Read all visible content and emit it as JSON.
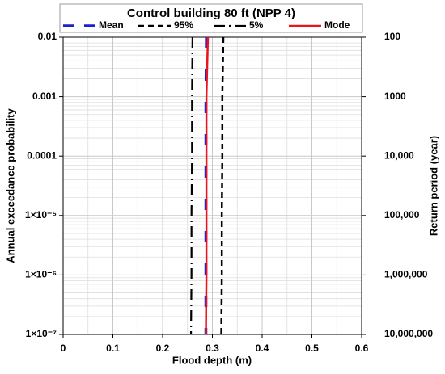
{
  "chart_data": {
    "type": "line",
    "title": "Control building 80 ft (NPP 4)",
    "x_label": "Flood depth (m)",
    "y_label": "Annual exceedance probability",
    "y2_label": "Return period (year)",
    "y": [
      0.01,
      0.001,
      0.0001,
      1e-05,
      1e-06,
      1e-07
    ],
    "series": [
      {
        "name": "Mean",
        "color": "#1f1fd0",
        "dash": "long-dash",
        "values": [
          0.288,
          0.287,
          0.287,
          0.287,
          0.287,
          0.287
        ]
      },
      {
        "name": "95%",
        "color": "#000000",
        "dash": "dash",
        "values": [
          0.322,
          0.32,
          0.32,
          0.319,
          0.319,
          0.318
        ]
      },
      {
        "name": "5%",
        "color": "#000000",
        "dash": "dash-dot",
        "values": [
          0.26,
          0.259,
          0.259,
          0.258,
          0.258,
          0.257
        ]
      },
      {
        "name": "Mode",
        "color": "#e8141e",
        "dash": "solid",
        "values": [
          0.291,
          0.288,
          0.288,
          0.288,
          0.288,
          0.287
        ]
      }
    ],
    "xlim": [
      0,
      0.6
    ],
    "xticks": [
      0,
      0.1,
      0.2,
      0.3,
      0.4,
      0.5,
      0.6
    ],
    "ylim": [
      1e-07,
      0.01
    ],
    "y_log": true,
    "yticks": [
      0.01,
      0.001,
      0.0001,
      {
        "value": 1e-05,
        "label": "1×10⁻⁵"
      },
      {
        "value": 1e-06,
        "label": "1×10⁻⁶"
      },
      {
        "value": 1e-07,
        "label": "1×10⁻⁷"
      }
    ],
    "y2lim": [
      10000000,
      100
    ],
    "y2_log": true,
    "y2ticks": [
      100,
      1000,
      {
        "value": 10000,
        "label": "10,000"
      },
      {
        "value": 100000,
        "label": "100,000"
      },
      {
        "value": 1000000,
        "label": "1,000,000"
      },
      {
        "value": 10000000,
        "label": "10,000,000"
      }
    ],
    "grid": true,
    "legend": "top"
  }
}
